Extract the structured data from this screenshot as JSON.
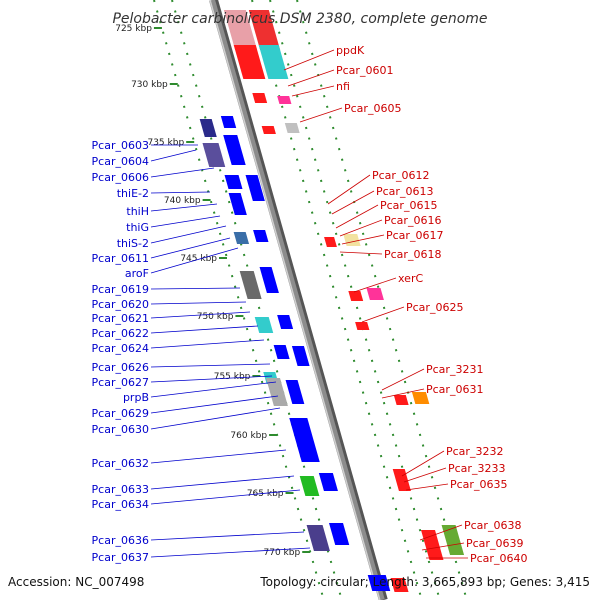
{
  "title": "Pelobacter carbinolicus DSM 2380, complete genome",
  "footer": {
    "accession": "Accession: NC_007498",
    "summary": "Topology: circular; Length: 3,665,893 bp; Genes: 3,415"
  },
  "colors": {
    "left_labels": "#0000cc",
    "right_labels": "#cc0000",
    "backbone": "#8c8c8c",
    "ticks": "#2e8b2e"
  },
  "scale": {
    "ticks": [
      "725 kbp",
      "730 kbp",
      "735 kbp",
      "740 kbp",
      "745 kbp",
      "750 kbp",
      "755 kbp",
      "760 kbp",
      "765 kbp",
      "770 kbp"
    ]
  },
  "left_genes": [
    "Pcar_0603",
    "Pcar_0604",
    "Pcar_0606",
    "thiE-2",
    "thiH",
    "thiG",
    "thiS-2",
    "Pcar_0611",
    "aroF",
    "Pcar_0619",
    "Pcar_0620",
    "Pcar_0621",
    "Pcar_0622",
    "Pcar_0624",
    "Pcar_0626",
    "Pcar_0627",
    "prpB",
    "Pcar_0629",
    "Pcar_0630",
    "Pcar_0632",
    "Pcar_0633",
    "Pcar_0634",
    "Pcar_0636",
    "Pcar_0637"
  ],
  "right_genes": [
    "ppdK",
    "Pcar_0601",
    "nfi",
    "Pcar_0605",
    "Pcar_0612",
    "Pcar_0613",
    "Pcar_0615",
    "Pcar_0616",
    "Pcar_0617",
    "Pcar_0618",
    "xerC",
    "Pcar_0625",
    "Pcar_3231",
    "Pcar_0631",
    "Pcar_3232",
    "Pcar_3233",
    "Pcar_0635",
    "Pcar_0638",
    "Pcar_0639",
    "Pcar_0640"
  ]
}
